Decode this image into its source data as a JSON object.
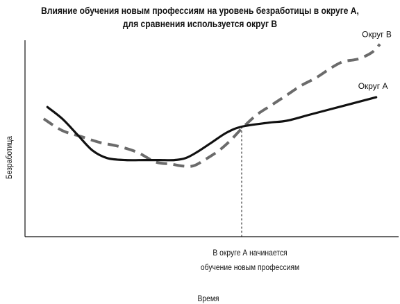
{
  "chart_data": {
    "type": "line",
    "title": [
      "Влияние обучения новым профессиям на уровень безработицы в округе А,",
      "для сравнения используется округ В"
    ],
    "xlabel": "Время",
    "ylabel": "Безработица",
    "xlim": [
      0,
      100
    ],
    "ylim": [
      0,
      100
    ],
    "grid": false,
    "annotation": {
      "x": 58,
      "lines": [
        "В округе А начинается",
        "обучение новым профессиям"
      ]
    },
    "series": [
      {
        "name": "Округ А",
        "style": "solid",
        "color": "#111111",
        "x": [
          6,
          10,
          14,
          18,
          22,
          27,
          32,
          36,
          40,
          43,
          46,
          50,
          54,
          58,
          65,
          70,
          76,
          82,
          88,
          94
        ],
        "y": [
          66,
          60,
          52,
          44,
          40,
          39,
          39,
          39,
          39,
          40,
          43,
          48,
          53,
          56,
          58,
          59,
          62,
          65,
          68,
          71
        ]
      },
      {
        "name": "Округ В",
        "style": "dashed",
        "color": "#6b6b6b",
        "x": [
          5,
          10,
          15,
          20,
          25,
          30,
          35,
          39,
          42,
          45,
          48,
          52,
          55,
          58,
          62,
          66,
          70,
          74,
          78,
          82,
          85,
          88,
          90,
          93,
          95
        ],
        "y": [
          60,
          54,
          51,
          48,
          46,
          43,
          38,
          37,
          36,
          36,
          39,
          44,
          49,
          55,
          62,
          67,
          72,
          77,
          81,
          86,
          89,
          90,
          91,
          94,
          98
        ]
      }
    ]
  }
}
